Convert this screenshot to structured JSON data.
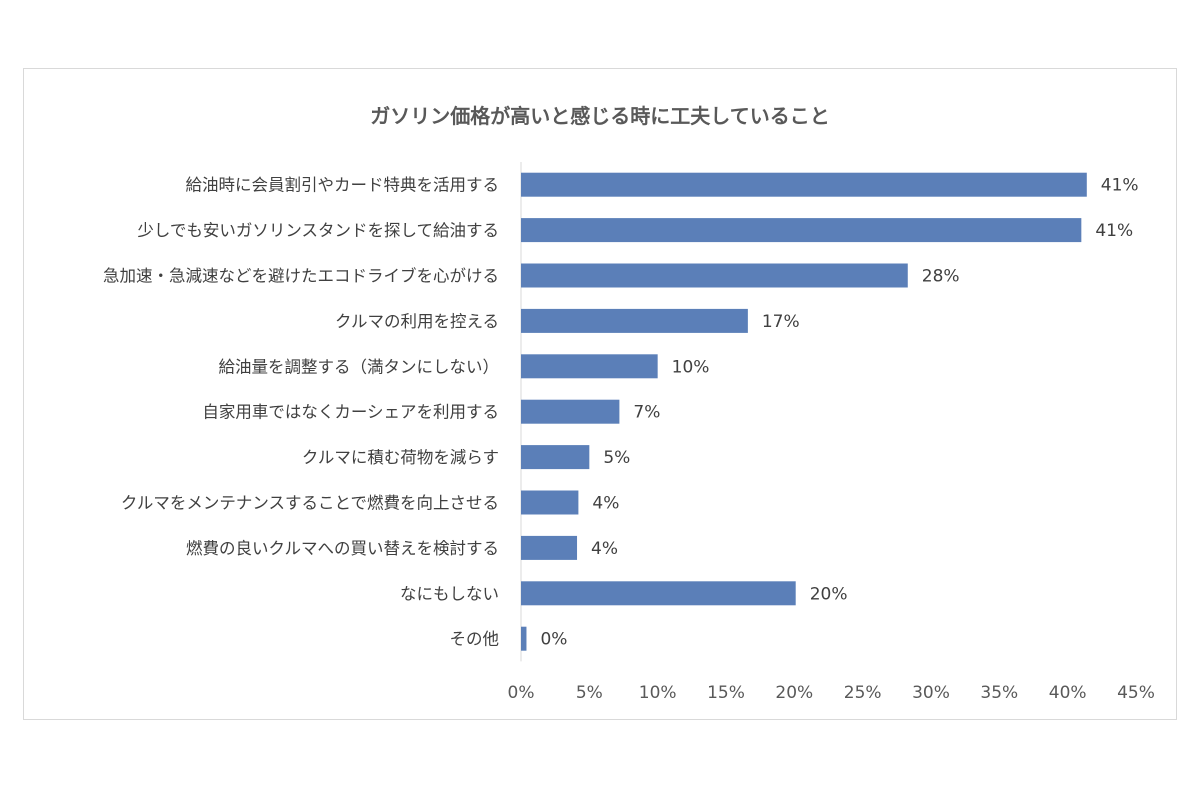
{
  "chart_data": {
    "type": "bar",
    "orientation": "horizontal",
    "title": "ガソリン価格が高いと感じる時に工夫していること",
    "categories": [
      "給油時に会員割引やカード特典を活用する",
      "少しでも安いガソリンスタンドを探して給油する",
      "急加速・急減速などを避けたエコドライブを心がける",
      "クルマの利用を控える",
      "給油量を調整する（満タンにしない）",
      "自家用車ではなくカーシェアを利用する",
      "クルマに積む荷物を減らす",
      "クルマをメンテナンスすることで燃費を向上させる",
      "燃費の良いクルマへの買い替えを検討する",
      "なにもしない",
      "その他"
    ],
    "values": [
      41.4,
      41.0,
      28.3,
      16.6,
      10.0,
      7.2,
      5.0,
      4.2,
      4.1,
      20.1,
      0.4
    ],
    "value_labels": [
      "41%",
      "41%",
      "28%",
      "17%",
      "10%",
      "7%",
      "5%",
      "4%",
      "4%",
      "20%",
      "0%"
    ],
    "xlim": [
      0,
      45
    ],
    "xticks": [
      "0%",
      "5%",
      "10%",
      "15%",
      "20%",
      "25%",
      "30%",
      "35%",
      "40%",
      "45%"
    ],
    "bar_color": "#5b7fb8",
    "grid": false
  }
}
